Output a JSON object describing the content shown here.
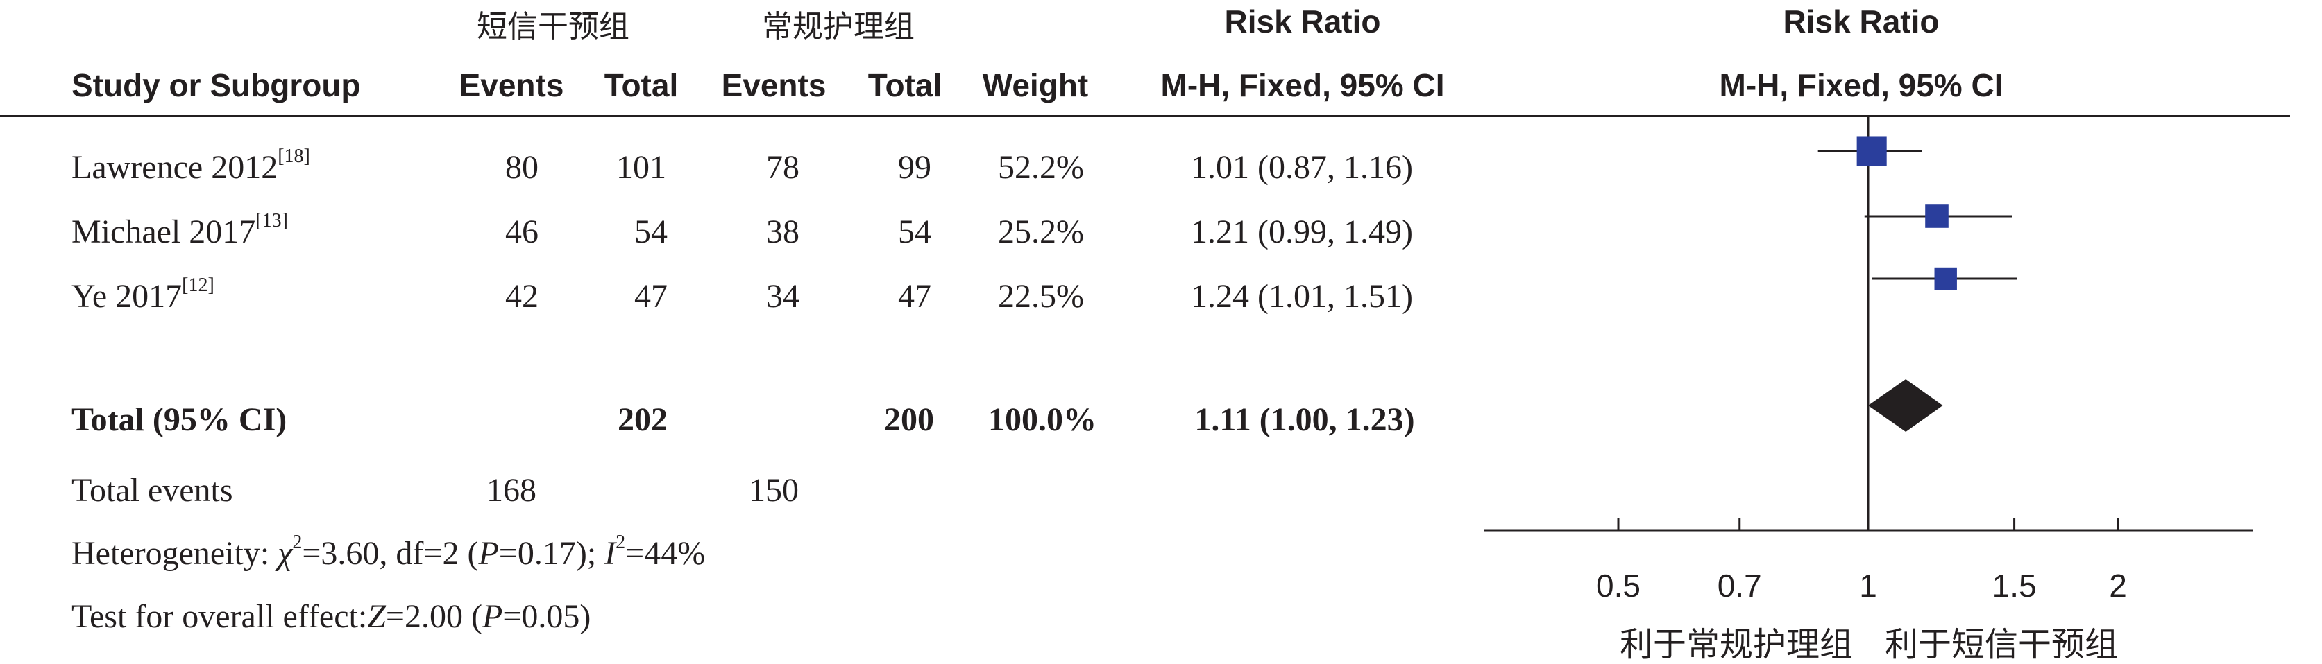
{
  "header": {
    "group_experimental": "短信干预组",
    "group_control": "常规护理组",
    "risk_ratio_table": "Risk Ratio",
    "risk_ratio_plot": "Risk Ratio",
    "study_col": "Study or Subgroup",
    "events1": "Events",
    "total1": "Total",
    "events2": "Events",
    "total2": "Total",
    "weight": "Weight",
    "method_table": "M-H, Fixed, 95% CI",
    "method_plot": "M-H, Fixed, 95% CI"
  },
  "studies": [
    {
      "name": "Lawrence 2012",
      "ref": "[18]",
      "events1": "80",
      "total1": "101",
      "events2": "78",
      "total2": "99",
      "weight": "52.2%",
      "ci_text": "1.01 (0.87, 1.16)"
    },
    {
      "name": "Michael 2017",
      "ref": "[13]",
      "events1": "46",
      "total1": "54",
      "events2": "38",
      "total2": "54",
      "weight": "25.2%",
      "ci_text": "1.21 (0.99, 1.49)"
    },
    {
      "name": "Ye 2017",
      "ref": "[12]",
      "events1": "42",
      "total1": "47",
      "events2": "34",
      "total2": "47",
      "weight": "22.5%",
      "ci_text": "1.24 (1.01, 1.51)"
    }
  ],
  "total": {
    "label": "Total (95% CI)",
    "total1": "202",
    "total2": "200",
    "weight": "100.0%",
    "ci_text": "1.11 (1.00, 1.23)"
  },
  "events_row": {
    "label": "Total events",
    "events1": "168",
    "events2": "150"
  },
  "heterogeneity": {
    "prefix": "Heterogeneity: ",
    "chi": "χ",
    "chi_rest": "=3.60, df=2 (",
    "p": "P",
    "p_rest": "=0.17); ",
    "i": "I",
    "i_rest": "=44%"
  },
  "overall": {
    "prefix": "Test for overall effect:",
    "z": "Z",
    "z_rest": "=2.00 (",
    "p": "P",
    "p_rest": "=0.05)"
  },
  "favours": {
    "left": "利于常规护理组",
    "right": "利于短信干预组"
  },
  "chart_data": {
    "type": "forest",
    "scale": "log",
    "xlim": [
      0.4,
      3.2
    ],
    "ticks": [
      0.5,
      0.7,
      1,
      1.5,
      2
    ],
    "tick_labels": [
      "0.5",
      "0.7",
      "1",
      "1.5",
      "2"
    ],
    "null_line": 1,
    "studies": [
      {
        "rr": 1.01,
        "lo": 0.87,
        "hi": 1.16,
        "weight": 52.2
      },
      {
        "rr": 1.21,
        "lo": 0.99,
        "hi": 1.49,
        "weight": 25.2
      },
      {
        "rr": 1.24,
        "lo": 1.01,
        "hi": 1.51,
        "weight": 22.5
      }
    ],
    "pooled": {
      "rr": 1.11,
      "lo": 1.0,
      "hi": 1.23
    },
    "colors": {
      "square": "#2a3e9c",
      "diamond": "#231f20",
      "line": "#231f20"
    }
  }
}
